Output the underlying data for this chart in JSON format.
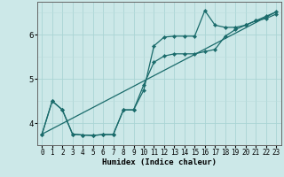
{
  "xlabel": "Humidex (Indice chaleur)",
  "bg_color": "#cce8e8",
  "line_color": "#1a6b6b",
  "xlim": [
    -0.5,
    23.5
  ],
  "ylim": [
    3.5,
    6.75
  ],
  "yticks": [
    4,
    5,
    6
  ],
  "xticks": [
    0,
    1,
    2,
    3,
    4,
    5,
    6,
    7,
    8,
    9,
    10,
    11,
    12,
    13,
    14,
    15,
    16,
    17,
    18,
    19,
    20,
    21,
    22,
    23
  ],
  "series1_x": [
    0,
    1,
    2,
    3,
    4,
    5,
    6,
    7,
    8,
    9,
    10,
    11,
    12,
    13,
    14,
    15,
    16,
    17,
    18,
    19,
    20,
    21,
    22,
    23
  ],
  "series1_y": [
    3.75,
    4.5,
    4.3,
    3.75,
    3.73,
    3.72,
    3.74,
    3.74,
    4.3,
    4.3,
    4.75,
    5.75,
    5.95,
    5.97,
    5.97,
    5.97,
    6.55,
    6.22,
    6.17,
    6.17,
    6.22,
    6.32,
    6.42,
    6.52
  ],
  "series2_x": [
    0,
    1,
    2,
    3,
    4,
    5,
    6,
    7,
    8,
    9,
    10,
    11,
    12,
    13,
    14,
    15,
    16,
    17,
    18,
    19,
    20,
    21,
    22,
    23
  ],
  "series2_y": [
    3.75,
    4.5,
    4.3,
    3.75,
    3.73,
    3.72,
    3.74,
    3.74,
    4.3,
    4.3,
    4.87,
    5.38,
    5.52,
    5.57,
    5.57,
    5.57,
    5.62,
    5.67,
    5.97,
    6.12,
    6.22,
    6.32,
    6.37,
    6.47
  ],
  "series3_x": [
    0,
    23
  ],
  "series3_y": [
    3.75,
    6.52
  ],
  "grid_major_color": "#aad4d4",
  "grid_minor_color": "#bbdddd",
  "marker": "D",
  "markersize": 2.2
}
